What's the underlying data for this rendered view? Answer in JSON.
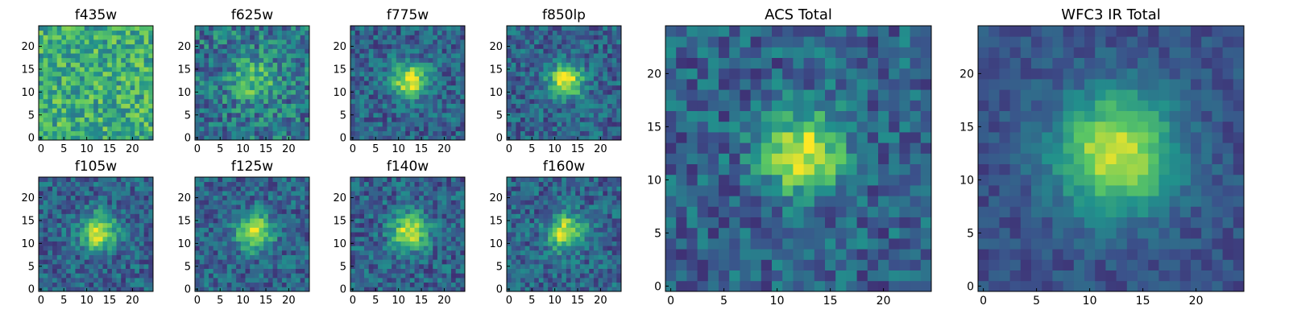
{
  "figure": {
    "panels": [
      {
        "title": "f435w",
        "pattern": "noise",
        "x_ticks": [
          "0",
          "5",
          "10",
          "15",
          "20"
        ],
        "y_ticks": [
          "0",
          "5",
          "10",
          "15",
          "20"
        ]
      },
      {
        "title": "f625w",
        "pattern": "faint-source",
        "x_ticks": [
          "0",
          "5",
          "10",
          "15",
          "20"
        ],
        "y_ticks": [
          "0",
          "5",
          "10",
          "15",
          "20"
        ]
      },
      {
        "title": "f775w",
        "pattern": "source",
        "x_ticks": [
          "0",
          "5",
          "10",
          "15",
          "20"
        ],
        "y_ticks": [
          "0",
          "5",
          "10",
          "15",
          "20"
        ]
      },
      {
        "title": "f850lp",
        "pattern": "source",
        "x_ticks": [
          "0",
          "5",
          "10",
          "15",
          "20"
        ],
        "y_ticks": [
          "0",
          "5",
          "10",
          "15",
          "20"
        ]
      },
      {
        "title": "f105w",
        "pattern": "source",
        "x_ticks": [
          "0",
          "5",
          "10",
          "15",
          "20"
        ],
        "y_ticks": [
          "0",
          "5",
          "10",
          "15",
          "20"
        ]
      },
      {
        "title": "f125w",
        "pattern": "source",
        "x_ticks": [
          "0",
          "5",
          "10",
          "15",
          "20"
        ],
        "y_ticks": [
          "0",
          "5",
          "10",
          "15",
          "20"
        ]
      },
      {
        "title": "f140w",
        "pattern": "source",
        "x_ticks": [
          "0",
          "5",
          "10",
          "15",
          "20"
        ],
        "y_ticks": [
          "0",
          "5",
          "10",
          "15",
          "20"
        ]
      },
      {
        "title": "f160w",
        "pattern": "source",
        "x_ticks": [
          "0",
          "5",
          "10",
          "15",
          "20"
        ],
        "y_ticks": [
          "0",
          "5",
          "10",
          "15",
          "20"
        ]
      },
      {
        "title": "ACS Total",
        "pattern": "source",
        "x_ticks": [
          "0",
          "5",
          "10",
          "15",
          "20"
        ],
        "y_ticks": [
          "0",
          "5",
          "10",
          "15",
          "20"
        ]
      },
      {
        "title": "WFC3 IR Total",
        "pattern": "smooth-source",
        "x_ticks": [
          "0",
          "5",
          "10",
          "15",
          "20"
        ],
        "y_ticks": [
          "0",
          "5",
          "10",
          "15",
          "20"
        ]
      }
    ],
    "colormap": [
      "#440154",
      "#3b528b",
      "#21918c",
      "#5ec962",
      "#fde725"
    ],
    "grid_size": 25
  }
}
